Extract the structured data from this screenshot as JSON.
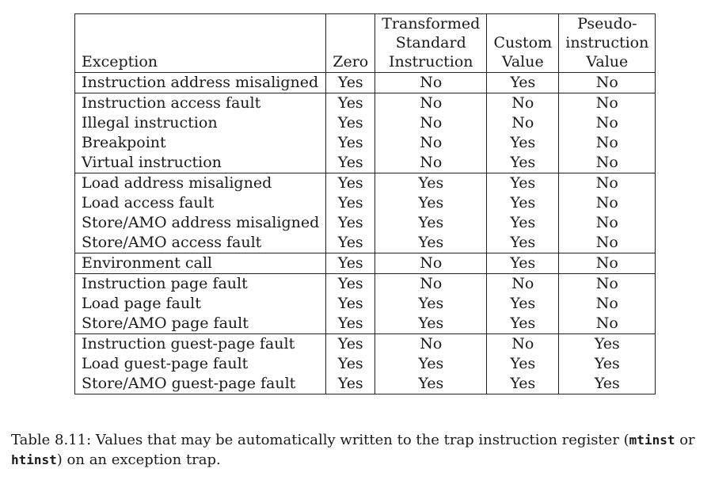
{
  "table": {
    "headers": [
      {
        "lines": [
          "Exception"
        ]
      },
      {
        "lines": [
          "Zero"
        ]
      },
      {
        "lines": [
          "Transformed",
          "Standard",
          "Instruction"
        ]
      },
      {
        "lines": [
          "Custom",
          "Value"
        ]
      },
      {
        "lines": [
          "Pseudo-",
          "instruction",
          "Value"
        ]
      }
    ],
    "groups": [
      [
        {
          "exception": "Instruction address misaligned",
          "zero": "Yes",
          "transformed": "No",
          "custom": "Yes",
          "pseudo": "No"
        }
      ],
      [
        {
          "exception": "Instruction access fault",
          "zero": "Yes",
          "transformed": "No",
          "custom": "No",
          "pseudo": "No"
        },
        {
          "exception": "Illegal instruction",
          "zero": "Yes",
          "transformed": "No",
          "custom": "No",
          "pseudo": "No"
        },
        {
          "exception": "Breakpoint",
          "zero": "Yes",
          "transformed": "No",
          "custom": "Yes",
          "pseudo": "No"
        },
        {
          "exception": "Virtual instruction",
          "zero": "Yes",
          "transformed": "No",
          "custom": "Yes",
          "pseudo": "No"
        }
      ],
      [
        {
          "exception": "Load address misaligned",
          "zero": "Yes",
          "transformed": "Yes",
          "custom": "Yes",
          "pseudo": "No"
        },
        {
          "exception": "Load access fault",
          "zero": "Yes",
          "transformed": "Yes",
          "custom": "Yes",
          "pseudo": "No"
        },
        {
          "exception": "Store/AMO address misaligned",
          "zero": "Yes",
          "transformed": "Yes",
          "custom": "Yes",
          "pseudo": "No"
        },
        {
          "exception": "Store/AMO access fault",
          "zero": "Yes",
          "transformed": "Yes",
          "custom": "Yes",
          "pseudo": "No"
        }
      ],
      [
        {
          "exception": "Environment call",
          "zero": "Yes",
          "transformed": "No",
          "custom": "Yes",
          "pseudo": "No"
        }
      ],
      [
        {
          "exception": "Instruction page fault",
          "zero": "Yes",
          "transformed": "No",
          "custom": "No",
          "pseudo": "No"
        },
        {
          "exception": "Load page fault",
          "zero": "Yes",
          "transformed": "Yes",
          "custom": "Yes",
          "pseudo": "No"
        },
        {
          "exception": "Store/AMO page fault",
          "zero": "Yes",
          "transformed": "Yes",
          "custom": "Yes",
          "pseudo": "No"
        }
      ],
      [
        {
          "exception": "Instruction guest-page fault",
          "zero": "Yes",
          "transformed": "No",
          "custom": "No",
          "pseudo": "Yes"
        },
        {
          "exception": "Load guest-page fault",
          "zero": "Yes",
          "transformed": "Yes",
          "custom": "Yes",
          "pseudo": "Yes"
        },
        {
          "exception": "Store/AMO guest-page fault",
          "zero": "Yes",
          "transformed": "Yes",
          "custom": "Yes",
          "pseudo": "Yes"
        }
      ]
    ]
  },
  "caption": {
    "label": "Table 8.11:",
    "text_before": "Values that may be automatically written to the trap instruction register (",
    "code1": "mtinst",
    "text_mid": " or ",
    "code2": "htinst",
    "text_after": ") on an exception trap."
  }
}
